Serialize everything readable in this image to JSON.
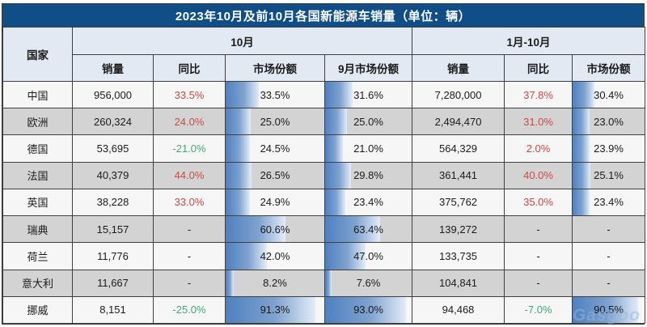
{
  "title": "2023年10月及前10月各国新能源车销量（单位：辆）",
  "watermark": {
    "text": "Gasgoo"
  },
  "colors": {
    "title_bg": "#0f4e86",
    "title_text": "#ffffff",
    "header_bg": "#e2e9f2",
    "row_light": "#f6f6f6",
    "row_dark": "#d3d3d3",
    "border": "#3f3f3f",
    "yoy_positive_red": "#cb4a46",
    "yoy_negative_green": "#45a67a",
    "share_bar_blue": "#4f80c0",
    "share_bar_fade": "#e3ecf7"
  },
  "chart_data": {
    "type": "table",
    "title": "2023年10月及前10月各国新能源车销量（单位：辆）",
    "column_groups": [
      {
        "label": "10月",
        "span": 4
      },
      {
        "label": "1月-10月",
        "span": 3
      }
    ],
    "columns": [
      "国家",
      "销量",
      "同比",
      "市场份额",
      "9月市场份额",
      "销量",
      "同比",
      "市场份额"
    ],
    "share_bar_note": "市场份额 and 9月市场份额 cells contain blue gradient data bars whose width equals the percentage value",
    "rows": [
      {
        "country": "中国",
        "oct_sales": "956,000",
        "oct_yoy": "33.5%",
        "oct_yoy_dir": "up",
        "oct_share": 33.5,
        "sep_share": 31.6,
        "ytd_sales": "7,280,000",
        "ytd_yoy": "37.8%",
        "ytd_yoy_dir": "up",
        "ytd_share": 30.4
      },
      {
        "country": "欧洲",
        "oct_sales": "260,324",
        "oct_yoy": "24.0%",
        "oct_yoy_dir": "up",
        "oct_share": 25.0,
        "sep_share": 25.0,
        "ytd_sales": "2,494,470",
        "ytd_yoy": "31.0%",
        "ytd_yoy_dir": "up",
        "ytd_share": 23.0
      },
      {
        "country": "德国",
        "oct_sales": "53,695",
        "oct_yoy": "-21.0%",
        "oct_yoy_dir": "down",
        "oct_share": 24.5,
        "sep_share": 21.0,
        "ytd_sales": "564,329",
        "ytd_yoy": "2.0%",
        "ytd_yoy_dir": "up",
        "ytd_share": 23.9
      },
      {
        "country": "法国",
        "oct_sales": "40,379",
        "oct_yoy": "44.0%",
        "oct_yoy_dir": "up",
        "oct_share": 26.5,
        "sep_share": 29.8,
        "ytd_sales": "361,441",
        "ytd_yoy": "40.0%",
        "ytd_yoy_dir": "up",
        "ytd_share": 25.1
      },
      {
        "country": "英国",
        "oct_sales": "38,228",
        "oct_yoy": "33.0%",
        "oct_yoy_dir": "up",
        "oct_share": 24.9,
        "sep_share": 23.4,
        "ytd_sales": "375,762",
        "ytd_yoy": "35.0%",
        "ytd_yoy_dir": "up",
        "ytd_share": 23.4
      },
      {
        "country": "瑞典",
        "oct_sales": "15,157",
        "oct_yoy": "-",
        "oct_yoy_dir": "none",
        "oct_share": 60.6,
        "sep_share": 63.4,
        "ytd_sales": "139,272",
        "ytd_yoy": "-",
        "ytd_yoy_dir": "none",
        "ytd_share": null
      },
      {
        "country": "荷兰",
        "oct_sales": "11,776",
        "oct_yoy": "-",
        "oct_yoy_dir": "none",
        "oct_share": 42.0,
        "sep_share": 47.0,
        "ytd_sales": "133,735",
        "ytd_yoy": "-",
        "ytd_yoy_dir": "none",
        "ytd_share": null
      },
      {
        "country": "意大利",
        "oct_sales": "11,667",
        "oct_yoy": "-",
        "oct_yoy_dir": "none",
        "oct_share": 8.2,
        "sep_share": 7.6,
        "ytd_sales": "104,841",
        "ytd_yoy": "-",
        "ytd_yoy_dir": "none",
        "ytd_share": null
      },
      {
        "country": "挪威",
        "oct_sales": "8,151",
        "oct_yoy": "-25.0%",
        "oct_yoy_dir": "down",
        "oct_share": 91.3,
        "sep_share": 93.0,
        "ytd_sales": "94,468",
        "ytd_yoy": "-7.0%",
        "ytd_yoy_dir": "down",
        "ytd_share": 90.5
      }
    ]
  }
}
